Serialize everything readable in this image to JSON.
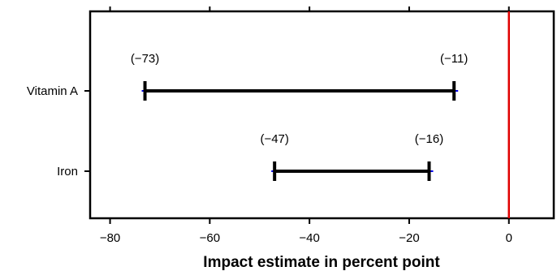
{
  "chart_data": {
    "type": "interval",
    "xlabel": "Impact estimate in percent point",
    "ylabel": "",
    "xlim": [
      -84,
      9
    ],
    "x_ticks": [
      -80,
      -60,
      -40,
      -20,
      0
    ],
    "x_tick_labels": [
      "−80",
      "−60",
      "−40",
      "−20",
      "0"
    ],
    "categories": [
      "Vitamin A",
      "Iron"
    ],
    "intervals": [
      {
        "category": "Vitamin A",
        "low": -73,
        "high": -11,
        "low_label": "(−73)",
        "high_label": "(−11)"
      },
      {
        "category": "Iron",
        "low": -47,
        "high": -16,
        "low_label": "(−47)",
        "high_label": "(−16)"
      }
    ],
    "reference_line": {
      "x": 0,
      "color": "#e00000"
    },
    "colors": {
      "interval": "#000000",
      "whisker": "#0000ee"
    },
    "grid": false,
    "legend": "none"
  }
}
